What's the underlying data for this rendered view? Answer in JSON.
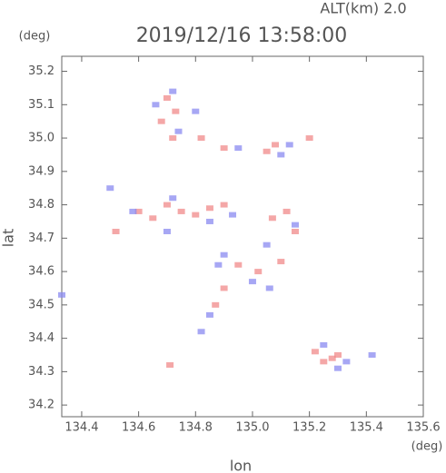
{
  "chart_data": {
    "type": "scatter",
    "title": "2019/12/16 13:58:00",
    "subtitle": "ALT(km) 2.0",
    "x_label": "lon",
    "y_label": "lat",
    "x_unit": "(deg)",
    "y_unit": "(deg)",
    "xlim": [
      134.33,
      135.6
    ],
    "ylim": [
      34.165,
      35.245
    ],
    "xticks": [
      134.4,
      134.6,
      134.8,
      {
        "value": 135,
        "label": "135.0"
      },
      135.2,
      135.4,
      135.6
    ],
    "yticks": [
      34.2,
      34.3,
      34.4,
      34.5,
      34.6,
      34.7,
      34.8,
      34.9,
      {
        "value": 35,
        "label": "35.0"
      },
      35.1,
      35.2
    ],
    "series": [
      {
        "color": "#f08a8a",
        "x": [
          134.7,
          134.73,
          134.68,
          134.72,
          134.82,
          134.9,
          135.05,
          135.08,
          135.2,
          134.6,
          134.65,
          134.7,
          134.75,
          134.8,
          134.85,
          134.9,
          134.52,
          135.07,
          135.12,
          135.15,
          134.95,
          135.02,
          135.1,
          134.9,
          134.87,
          135.22,
          135.25,
          135.28,
          135.3,
          134.71
        ],
        "y": [
          35.12,
          35.08,
          35.05,
          35.0,
          35.0,
          34.97,
          34.96,
          34.98,
          35.0,
          34.78,
          34.76,
          34.8,
          34.78,
          34.77,
          34.79,
          34.8,
          34.72,
          34.76,
          34.78,
          34.72,
          34.62,
          34.6,
          34.63,
          34.55,
          34.5,
          34.36,
          34.33,
          34.34,
          34.35,
          34.32
        ]
      },
      {
        "color": "#8a8af0",
        "x": [
          134.33,
          134.72,
          134.66,
          134.74,
          134.95,
          135.1,
          135.13,
          134.5,
          134.58,
          134.72,
          134.85,
          134.93,
          135.15,
          135.05,
          134.88,
          135.0,
          135.06,
          134.85,
          134.82,
          135.3,
          135.33,
          135.42,
          135.25,
          134.7,
          134.9,
          134.8
        ],
        "y": [
          34.53,
          35.14,
          35.1,
          35.02,
          34.97,
          34.95,
          34.98,
          34.85,
          34.78,
          34.82,
          34.75,
          34.77,
          34.74,
          34.68,
          34.62,
          34.57,
          34.55,
          34.47,
          34.42,
          34.31,
          34.33,
          34.35,
          34.38,
          34.72,
          34.65,
          35.08
        ]
      }
    ]
  }
}
